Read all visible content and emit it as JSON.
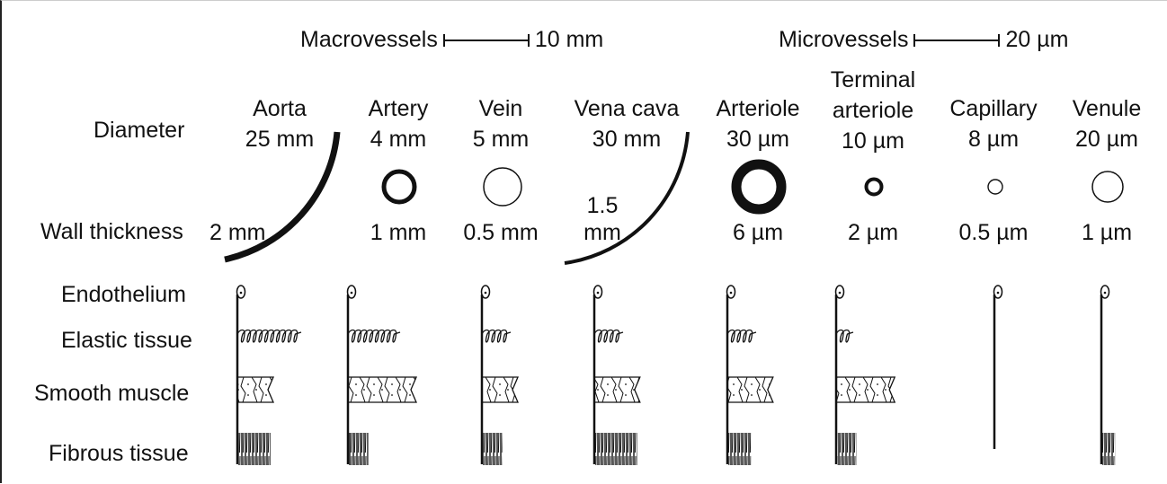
{
  "scales": {
    "macro_label": "Macrovessels",
    "macro_value": "10 mm",
    "micro_label": "Microvessels",
    "micro_value": "20 µm"
  },
  "rows": {
    "diameter": "Diameter",
    "wall_thickness": "Wall thickness",
    "endothelium": "Endothelium",
    "elastic": "Elastic tissue",
    "smooth_muscle": "Smooth muscle",
    "fibrous": "Fibrous tissue"
  },
  "vessels": [
    {
      "name": "Aorta",
      "diameter": "25 mm",
      "wall": "2 mm",
      "elastic_coils": 10,
      "muscle": 1.0,
      "fibrous": 1.0
    },
    {
      "name": "Artery",
      "diameter": "4 mm",
      "wall": "1 mm",
      "elastic_coils": 8,
      "muscle": 2.0,
      "fibrous": 0.6
    },
    {
      "name": "Vein",
      "diameter": "5 mm",
      "wall": "0.5 mm",
      "elastic_coils": 4,
      "muscle": 1.0,
      "fibrous": 0.6
    },
    {
      "name": "Vena cava",
      "diameter": "30 mm",
      "wall_line1": "1.5",
      "wall_line2": "mm",
      "elastic_coils": 4,
      "muscle": 1.3,
      "fibrous": 1.3
    },
    {
      "name": "Arteriole",
      "diameter": "30 µm",
      "wall": "6 µm",
      "elastic_coils": 4,
      "muscle": 1.3,
      "fibrous": 0.7
    },
    {
      "name_line1": "Terminal",
      "name_line2": "arteriole",
      "diameter": "10 µm",
      "wall": "2 µm",
      "elastic_coils": 2,
      "muscle": 1.7,
      "fibrous": 0.6
    },
    {
      "name": "Capillary",
      "diameter": "8 µm",
      "wall": "0.5 µm",
      "elastic_coils": 0,
      "muscle": 0,
      "fibrous": 0
    },
    {
      "name": "Venule",
      "diameter": "20 µm",
      "wall": "1 µm",
      "elastic_coils": 0,
      "muscle": 0,
      "fibrous": 0.4
    }
  ]
}
